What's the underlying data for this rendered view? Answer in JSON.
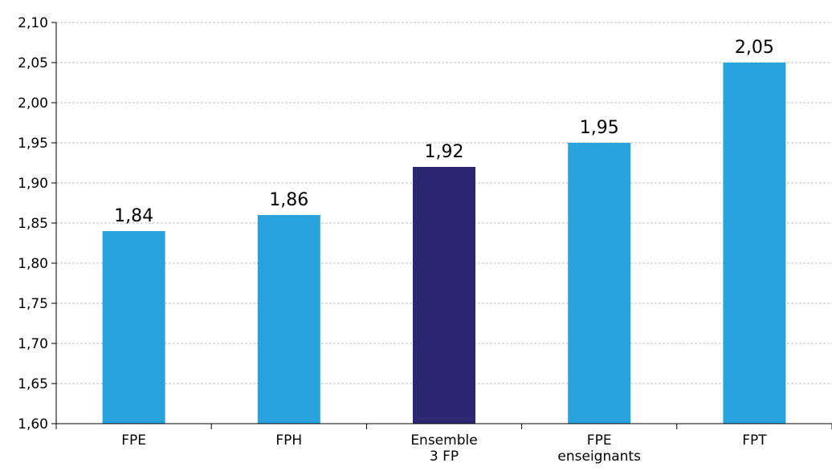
{
  "chart_data": {
    "type": "bar",
    "categories": [
      [
        "FPE"
      ],
      [
        "FPH"
      ],
      [
        "Ensemble",
        "3 FP"
      ],
      [
        "FPE",
        "enseignants"
      ],
      [
        "FPT"
      ]
    ],
    "values": [
      1.84,
      1.86,
      1.92,
      1.95,
      2.05
    ],
    "value_labels": [
      "1,84",
      "1,86",
      "1,92",
      "1,95",
      "2,05"
    ],
    "bar_colors": [
      "#29a3de",
      "#29a3de",
      "#2b2770",
      "#29a3de",
      "#29a3de"
    ],
    "ylim": [
      1.6,
      2.1
    ],
    "yticks": [
      1.6,
      1.65,
      1.7,
      1.75,
      1.8,
      1.85,
      1.9,
      1.95,
      2.0,
      2.05,
      2.1
    ],
    "ytick_labels": [
      "1,60",
      "1,65",
      "1,70",
      "1,75",
      "1,80",
      "1,85",
      "1,90",
      "1,95",
      "2,00",
      "2,05",
      "2,10"
    ],
    "grid": true,
    "legend": "none"
  }
}
